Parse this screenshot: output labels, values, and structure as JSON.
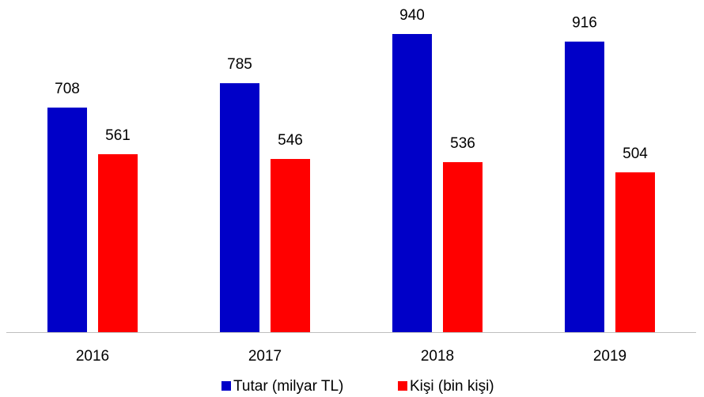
{
  "chart_data": {
    "type": "bar",
    "categories": [
      "2016",
      "2017",
      "2018",
      "2019"
    ],
    "series": [
      {
        "name": "Tutar (milyar TL)",
        "color": "#0000c8",
        "values": [
          708,
          785,
          940,
          916
        ]
      },
      {
        "name": "Kişi (bin kişi)",
        "color": "#ff0000",
        "values": [
          561,
          546,
          536,
          504
        ]
      }
    ]
  }
}
